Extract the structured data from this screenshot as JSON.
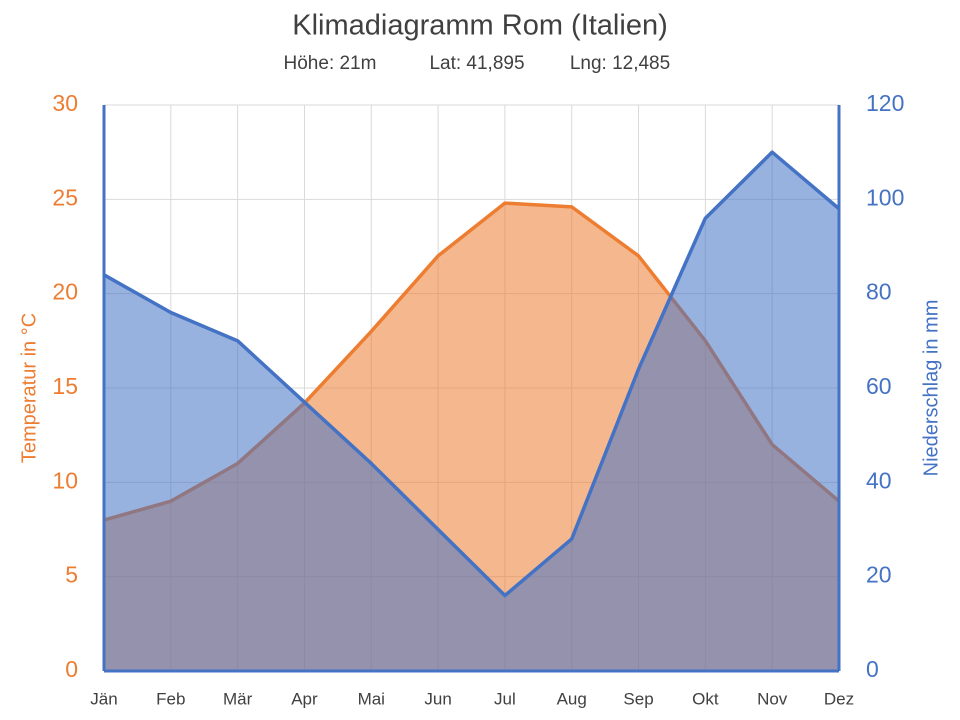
{
  "chart_data": {
    "type": "area",
    "title": "Klimadiagramm Rom (Italien)",
    "subtitle": [
      "Höhe: 21m",
      "Lat: 41,895",
      "Lng: 12,485"
    ],
    "categories": [
      "Jän",
      "Feb",
      "Mär",
      "Apr",
      "Mai",
      "Jun",
      "Jul",
      "Aug",
      "Sep",
      "Okt",
      "Nov",
      "Dez"
    ],
    "series": [
      {
        "name": "Temperatur",
        "color": "#ED7D31",
        "axis": "y",
        "values": [
          8,
          9,
          11,
          14.2,
          18,
          22,
          24.8,
          24.6,
          22,
          17.5,
          12,
          9
        ]
      },
      {
        "name": "Niederschlag",
        "color": "#4472C4",
        "axis": "y2",
        "values": [
          84,
          76,
          70,
          57,
          44,
          30,
          16,
          28,
          64,
          96,
          110,
          98
        ]
      }
    ],
    "ylabel": "Temperatur in °C",
    "y2label": "Niederschlag in mm",
    "ylim": [
      0,
      30
    ],
    "yticks": [
      0,
      5,
      10,
      15,
      20,
      25,
      30
    ],
    "y2lim": [
      0,
      120
    ],
    "y2ticks": [
      0,
      20,
      40,
      60,
      80,
      100,
      120
    ],
    "grid": true
  }
}
